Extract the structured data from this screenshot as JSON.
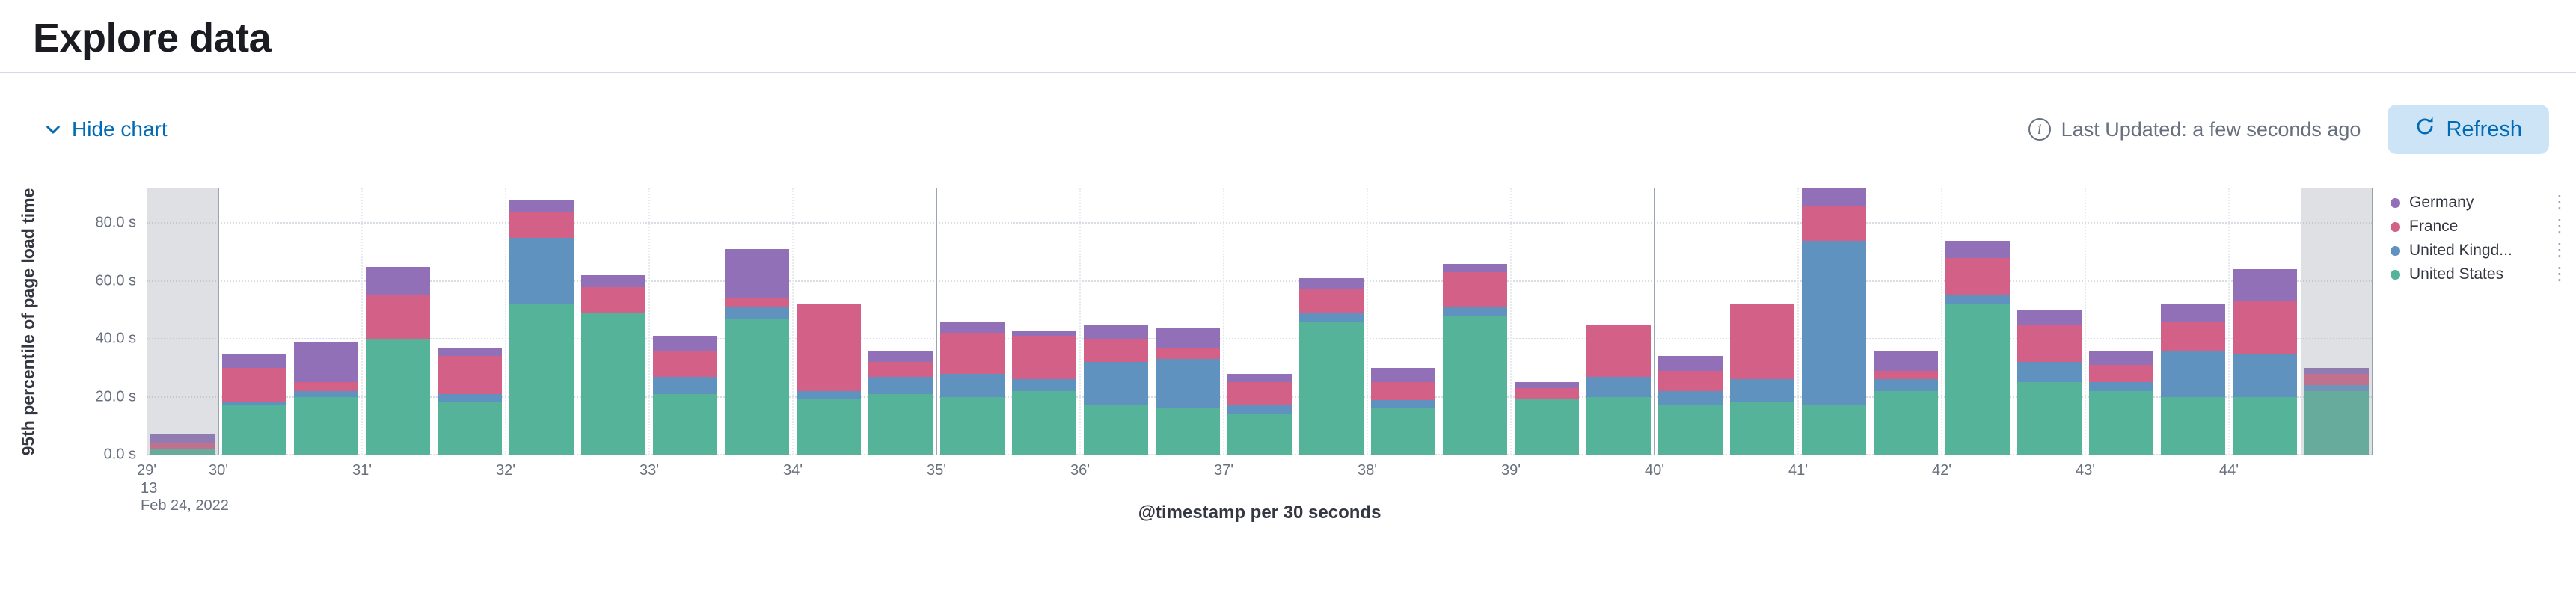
{
  "page": {
    "title": "Explore data"
  },
  "toolbar": {
    "hide_chart_label": "Hide chart",
    "last_updated": "Last Updated: a few seconds ago",
    "refresh_label": "Refresh"
  },
  "colors": {
    "link": "#006BB4",
    "refresh_button_bg": "#CCE4F5",
    "germany": "#9170B8",
    "france": "#D36086",
    "united_kingdom": "#6092C0",
    "united_states": "#54B399"
  },
  "chart_data": {
    "type": "bar",
    "stacked": true,
    "title": "",
    "xlabel": "@timestamp per 30 seconds",
    "ylabel": "95th percentile of page load time",
    "ylim": [
      0,
      92
    ],
    "grid": true,
    "legend_position": "right",
    "y_ticks": [
      {
        "value": 0,
        "label": "0.0 s"
      },
      {
        "value": 20,
        "label": "20.0 s"
      },
      {
        "value": 40,
        "label": "40.0 s"
      },
      {
        "value": 60,
        "label": "60.0 s"
      },
      {
        "value": 80,
        "label": "80.0 s"
      }
    ],
    "x_ticks": [
      {
        "label": "29'",
        "slot": 0,
        "sub_lines": [
          "13",
          "Feb 24, 2022"
        ]
      },
      {
        "label": "30'",
        "slot": 1
      },
      {
        "label": "31'",
        "slot": 3
      },
      {
        "label": "32'",
        "slot": 5
      },
      {
        "label": "33'",
        "slot": 7
      },
      {
        "label": "34'",
        "slot": 9
      },
      {
        "label": "35'",
        "slot": 11
      },
      {
        "label": "36'",
        "slot": 13
      },
      {
        "label": "37'",
        "slot": 15
      },
      {
        "label": "38'",
        "slot": 17
      },
      {
        "label": "39'",
        "slot": 19
      },
      {
        "label": "40'",
        "slot": 21
      },
      {
        "label": "41'",
        "slot": 23
      },
      {
        "label": "42'",
        "slot": 25
      },
      {
        "label": "43'",
        "slot": 27
      },
      {
        "label": "44'",
        "slot": 29
      }
    ],
    "major_vertical_lines_slots": [
      1,
      11,
      21,
      31
    ],
    "categories": [
      "13:29:30",
      "13:30:00",
      "13:30:30",
      "13:31:00",
      "13:31:30",
      "13:32:00",
      "13:32:30",
      "13:33:00",
      "13:33:30",
      "13:34:00",
      "13:34:30",
      "13:35:00",
      "13:35:30",
      "13:36:00",
      "13:36:30",
      "13:37:00",
      "13:37:30",
      "13:38:00",
      "13:38:30",
      "13:39:00",
      "13:39:30",
      "13:40:00",
      "13:40:30",
      "13:41:00",
      "13:41:30",
      "13:42:00",
      "13:42:30",
      "13:43:00",
      "13:43:30",
      "13:44:00",
      "13:44:30"
    ],
    "series": [
      {
        "name": "United States",
        "color": "#54B399",
        "values": [
          2,
          17,
          20,
          40,
          18,
          52,
          49,
          21,
          47,
          19,
          21,
          20,
          22,
          17,
          16,
          14,
          46,
          16,
          48,
          19,
          20,
          17,
          18,
          17,
          22,
          52,
          25,
          22,
          20,
          20,
          22
        ]
      },
      {
        "name": "United Kingdom",
        "color": "#6092C0",
        "values": [
          0,
          1,
          2,
          0,
          3,
          23,
          0,
          6,
          4,
          3,
          6,
          8,
          4,
          15,
          17,
          3,
          3,
          3,
          3,
          0,
          7,
          5,
          8,
          57,
          4,
          3,
          7,
          3,
          16,
          15,
          2
        ]
      },
      {
        "name": "France",
        "color": "#D36086",
        "values": [
          2,
          12,
          3,
          15,
          13,
          9,
          9,
          9,
          3,
          30,
          5,
          14,
          15,
          8,
          4,
          8,
          8,
          6,
          12,
          4,
          18,
          7,
          26,
          12,
          3,
          13,
          13,
          6,
          10,
          18,
          4
        ]
      },
      {
        "name": "Germany",
        "color": "#9170B8",
        "values": [
          3,
          5,
          14,
          10,
          3,
          4,
          4,
          5,
          17,
          0,
          4,
          4,
          2,
          5,
          7,
          3,
          4,
          5,
          3,
          2,
          0,
          5,
          0,
          6,
          7,
          6,
          5,
          5,
          6,
          11,
          2
        ]
      }
    ],
    "legend": [
      {
        "label": "Germany",
        "color": "#9170B8"
      },
      {
        "label": "France",
        "color": "#D36086"
      },
      {
        "label": "United Kingd...",
        "color": "#6092C0"
      },
      {
        "label": "United States",
        "color": "#54B399"
      }
    ],
    "partial_buckets": {
      "first_slot": true,
      "last_slot": true
    }
  }
}
